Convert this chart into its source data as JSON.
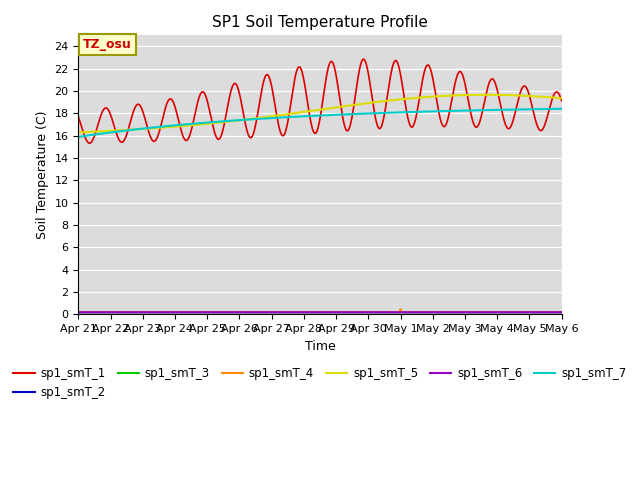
{
  "title": "SP1 Soil Temperature Profile",
  "xlabel": "Time",
  "ylabel": "Soil Temperature (C)",
  "ylim": [
    0,
    25
  ],
  "yticks": [
    0,
    2,
    4,
    6,
    8,
    10,
    12,
    14,
    16,
    18,
    20,
    22,
    24
  ],
  "bg_color": "#dcdcdc",
  "fig_color": "#ffffff",
  "annotation_text": "TZ_osu",
  "annotation_color": "#cc0000",
  "annotation_bg": "#ffffcc",
  "annotation_border": "#999900",
  "series": {
    "sp1_smT_1": {
      "color": "#dd0000",
      "linewidth": 1.2
    },
    "sp1_smT_2": {
      "color": "#0000cc",
      "linewidth": 1.2
    },
    "sp1_smT_3": {
      "color": "#00cc00",
      "linewidth": 1.2
    },
    "sp1_smT_4": {
      "color": "#ff8800",
      "linewidth": 1.2
    },
    "sp1_smT_5": {
      "color": "#dddd00",
      "linewidth": 1.5
    },
    "sp1_smT_6": {
      "color": "#9900cc",
      "linewidth": 1.5
    },
    "sp1_smT_7": {
      "color": "#00cccc",
      "linewidth": 1.5
    }
  },
  "xticklabels": [
    "Apr 21",
    "Apr 22",
    "Apr 23",
    "Apr 24",
    "Apr 25",
    "Apr 26",
    "Apr 27",
    "Apr 28",
    "Apr 29",
    "Apr 30",
    "May 1",
    "May 2",
    "May 3",
    "May 4",
    "May 5",
    "May 6"
  ],
  "num_points": 3600
}
